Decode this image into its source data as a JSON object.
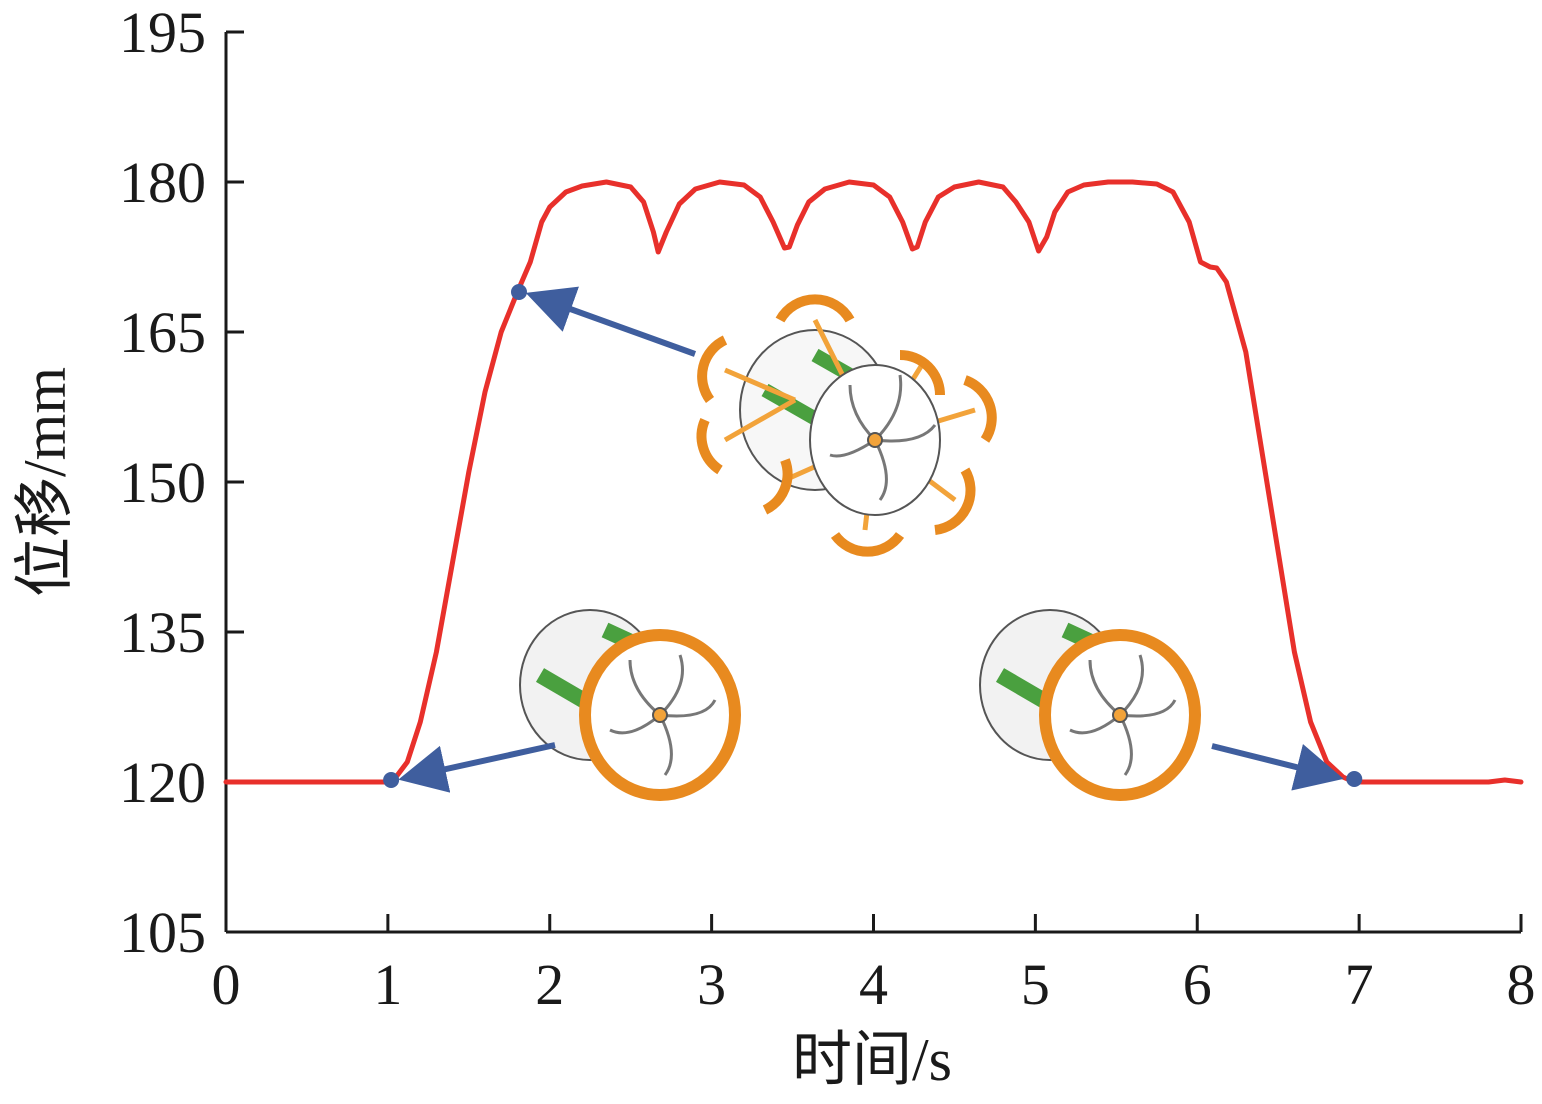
{
  "chart_data": {
    "type": "line",
    "xlabel": "时间/s",
    "ylabel": "位移/mm",
    "xlim": [
      0,
      8
    ],
    "ylim": [
      105,
      195
    ],
    "x_ticks": [
      0,
      1,
      2,
      3,
      4,
      5,
      6,
      7,
      8
    ],
    "y_ticks": [
      105,
      120,
      135,
      150,
      165,
      180,
      195
    ],
    "grid": false,
    "series": [
      {
        "color": "#e8302b",
        "x": [
          0,
          0.5,
          1.0,
          1.05,
          1.12,
          1.2,
          1.3,
          1.4,
          1.5,
          1.6,
          1.7,
          1.8,
          1.88,
          1.95,
          2.0,
          2.1,
          2.2,
          2.35,
          2.5,
          2.58,
          2.64,
          2.67,
          2.72,
          2.8,
          2.9,
          3.05,
          3.2,
          3.3,
          3.38,
          3.45,
          3.48,
          3.53,
          3.6,
          3.7,
          3.85,
          4.0,
          4.1,
          4.18,
          4.24,
          4.27,
          4.32,
          4.4,
          4.5,
          4.65,
          4.8,
          4.88,
          4.96,
          5.02,
          5.07,
          5.12,
          5.2,
          5.3,
          5.45,
          5.6,
          5.75,
          5.85,
          5.95,
          6.02,
          6.08,
          6.12,
          6.18,
          6.3,
          6.4,
          6.5,
          6.6,
          6.7,
          6.8,
          6.9,
          6.97,
          7.0,
          7.5,
          7.8,
          7.9,
          8.0
        ],
        "y": [
          120,
          120,
          120,
          120.5,
          122,
          126,
          133,
          142,
          151,
          159,
          165,
          169,
          172,
          176,
          177.5,
          179,
          179.6,
          180,
          179.5,
          178,
          175,
          173,
          175,
          177.8,
          179.3,
          180,
          179.7,
          178.5,
          176,
          173.4,
          173.5,
          175.7,
          178,
          179.3,
          180,
          179.7,
          178.5,
          176,
          173.3,
          173.5,
          176,
          178.5,
          179.5,
          180,
          179.5,
          178,
          176,
          173.1,
          174.5,
          177,
          179,
          179.7,
          180,
          180,
          179.8,
          179,
          176,
          172,
          171.5,
          171.4,
          170,
          163,
          153,
          143,
          133,
          126,
          122,
          120.5,
          120,
          120,
          120,
          120,
          120.2,
          120
        ]
      }
    ],
    "markers": [
      {
        "x": 1.02,
        "y": 120.2,
        "color": "#3f5e9e"
      },
      {
        "x": 1.81,
        "y": 169,
        "color": "#3f5e9e"
      },
      {
        "x": 6.97,
        "y": 120.3,
        "color": "#3f5e9e"
      }
    ]
  }
}
